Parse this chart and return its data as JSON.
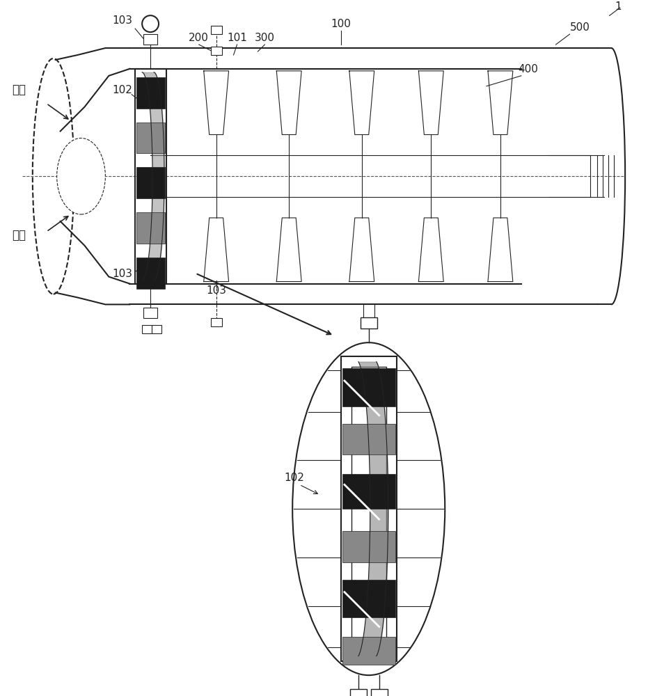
{
  "bg_color": "#ffffff",
  "line_color": "#222222",
  "dark_fill": "#1a1a1a",
  "gray_fill": "#888888",
  "light_gray": "#cccccc",
  "label_1": "1",
  "label_100": "100",
  "label_101": "101",
  "label_102": "102",
  "label_103_top": "103",
  "label_103_mid": "103",
  "label_103_bot": "103",
  "label_200": "200",
  "label_300": "300",
  "label_400": "400",
  "label_500": "500",
  "label_qiliu_top": "气流",
  "label_qiliu_bot": "气流",
  "label_102_detail": "102"
}
